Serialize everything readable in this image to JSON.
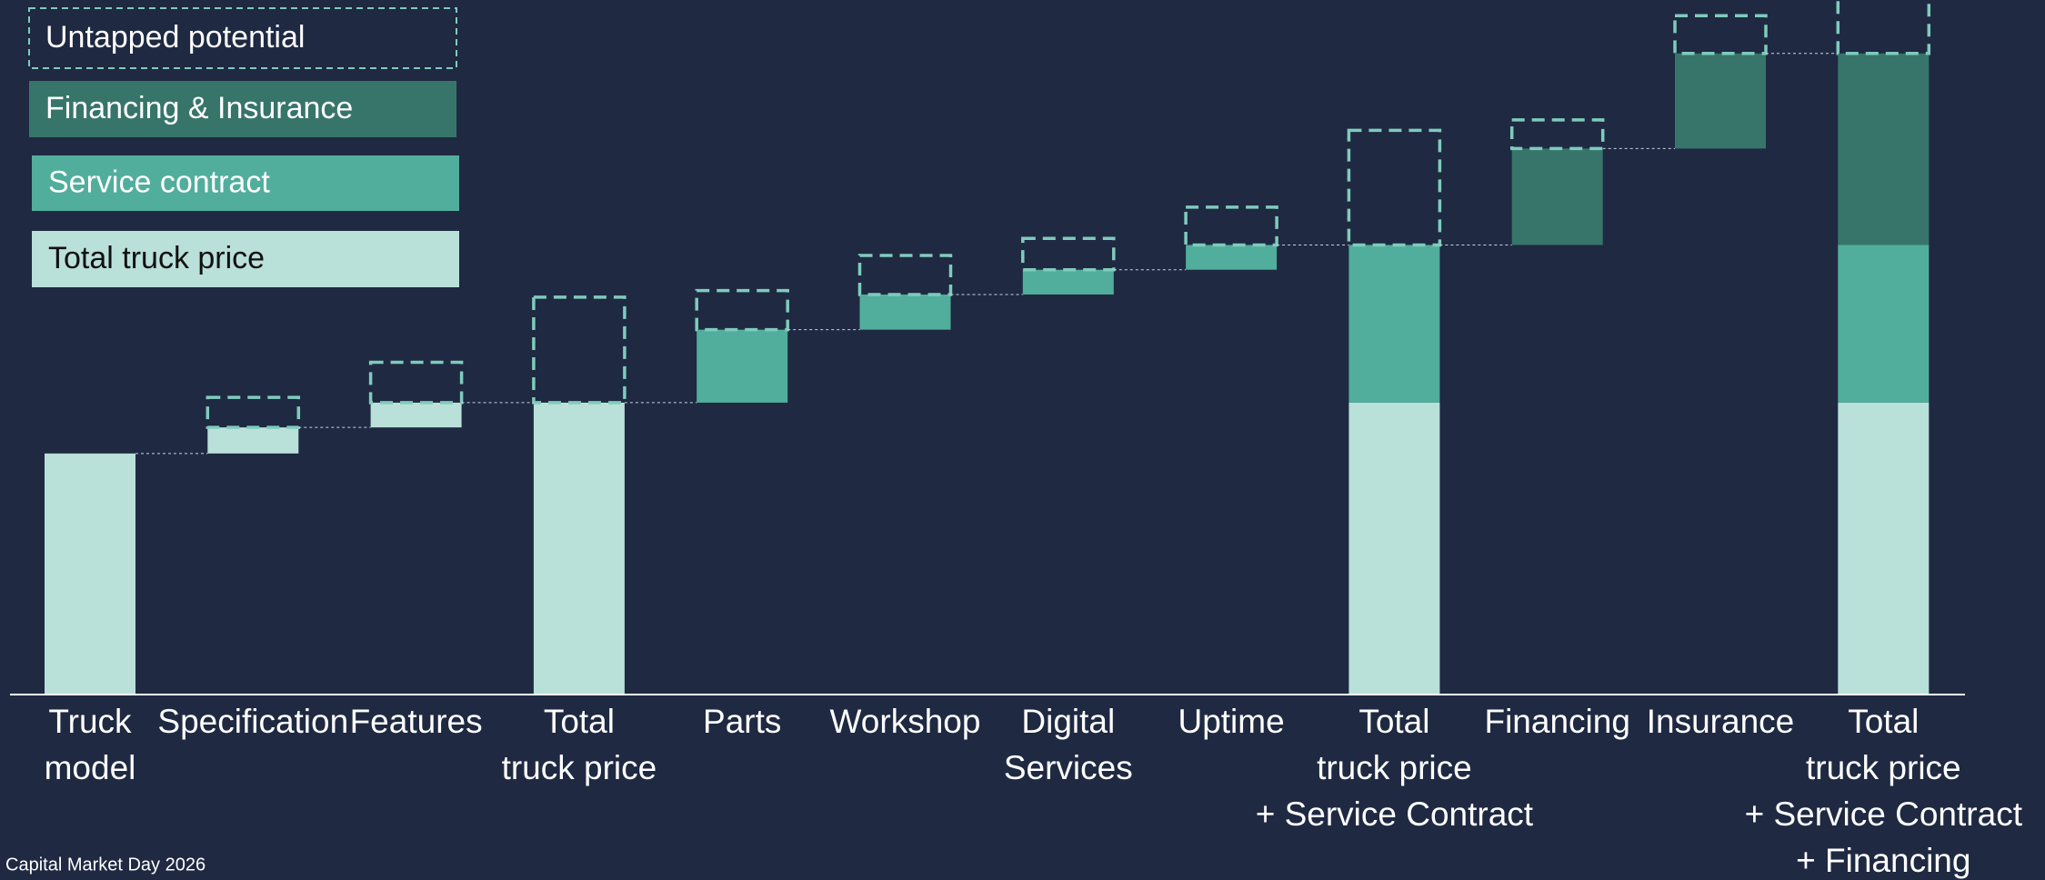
{
  "chart_data": {
    "type": "waterfall",
    "categories": [
      [
        "Truck",
        "model"
      ],
      [
        "Specification"
      ],
      [
        "Features"
      ],
      [
        "Total",
        "truck price"
      ],
      [
        "Parts"
      ],
      [
        "Workshop"
      ],
      [
        "Digital",
        "Services"
      ],
      [
        "Uptime"
      ],
      [
        "Total",
        "truck price",
        "+ Service Contract"
      ],
      [
        "Financing"
      ],
      [
        "Insurance"
      ],
      [
        "Total",
        "truck price",
        "+ Service Contract",
        "+ Financing"
      ]
    ],
    "measures": [
      "absolute",
      "relative",
      "relative",
      "total",
      "relative",
      "relative",
      "relative",
      "relative",
      "total",
      "relative",
      "relative",
      "total"
    ],
    "series": [
      {
        "name": "Total truck price",
        "color": "#b9e0d9",
        "values": [
          185,
          20,
          19,
          224,
          null,
          null,
          null,
          null,
          224,
          null,
          null,
          224
        ]
      },
      {
        "name": "Service contract",
        "color": "#52ae9c",
        "values": [
          null,
          null,
          null,
          null,
          56,
          27,
          19,
          19,
          121,
          null,
          null,
          121
        ]
      },
      {
        "name": "Financing & Insurance",
        "color": "#37756a",
        "values": [
          null,
          null,
          null,
          null,
          null,
          null,
          null,
          null,
          null,
          74,
          73,
          147
        ]
      },
      {
        "name": "Untapped potential",
        "color": "#7fcbbd",
        "dashed": true,
        "values": [
          null,
          23,
          31,
          81,
          30,
          30,
          24,
          29,
          88,
          22,
          29,
          45
        ]
      }
    ],
    "ylim": [
      0,
      533
    ],
    "footer": "Capital Market Day 2026"
  }
}
